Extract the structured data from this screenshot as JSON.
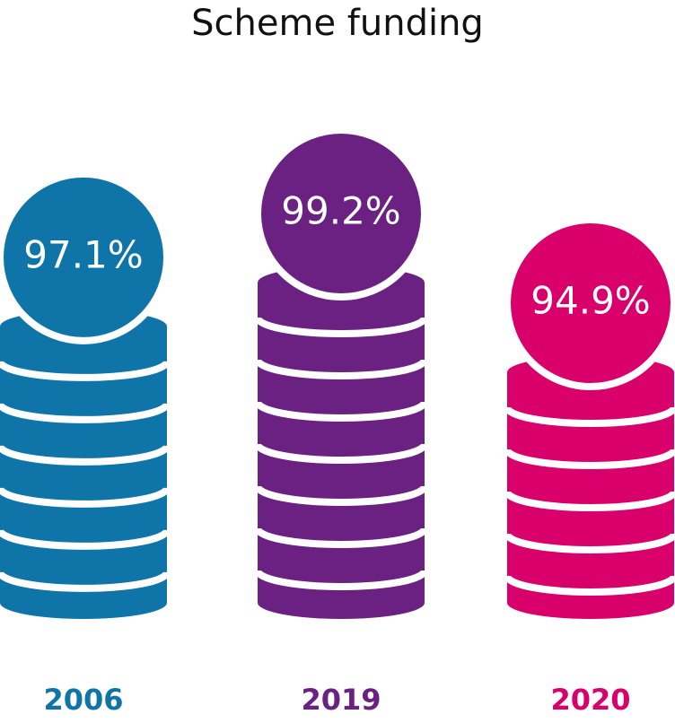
{
  "chart_data": {
    "type": "coin-stack",
    "title": "Scheme funding",
    "categories": [
      "2006",
      "2019",
      "2020"
    ],
    "values": [
      97.1,
      99.2,
      94.9
    ],
    "value_labels": [
      "97.1%",
      "99.2%",
      "94.9%"
    ],
    "colors": [
      "#0f75a8",
      "#6a2181",
      "#d9006c"
    ]
  }
}
